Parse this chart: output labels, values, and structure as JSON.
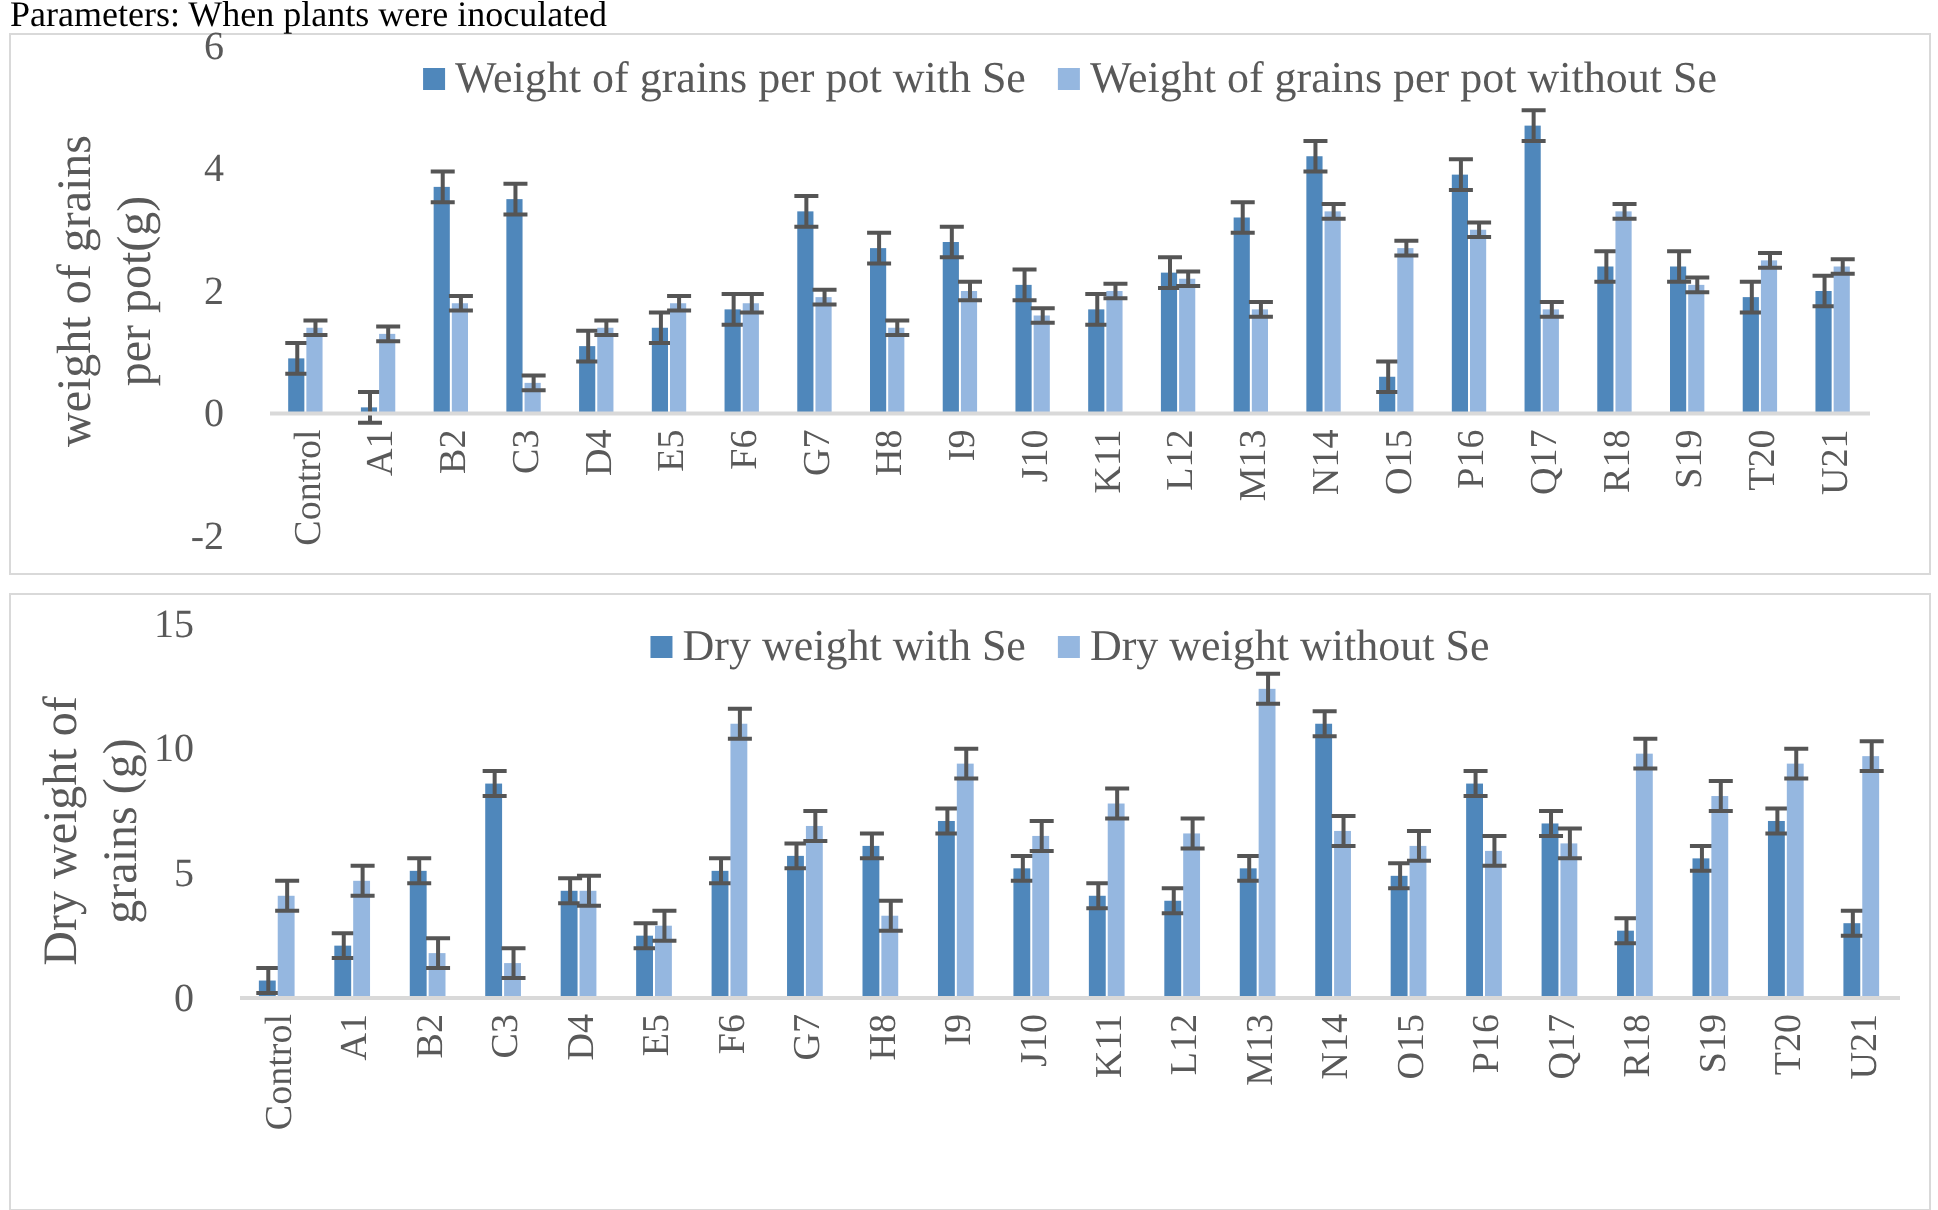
{
  "chart_data": [
    {
      "type": "bar",
      "ylabel": "weight of grains per pot(g)",
      "annotations": [
        "Parameters: When plants were inoculated"
      ],
      "categories": [
        "Control",
        "A1",
        "B2",
        "C3",
        "D4",
        "E5",
        "F6",
        "G7",
        "H8",
        "I9",
        "J10",
        "K11",
        "L12",
        "M13",
        "N14",
        "O15",
        "P16",
        "Q17",
        "R18",
        "S19",
        "T20",
        "U21"
      ],
      "series": [
        {
          "name": "Weight of grains per pot with Se",
          "color": "#4f87bb",
          "values": [
            0.9,
            0.1,
            3.7,
            3.5,
            1.1,
            1.4,
            1.7,
            3.3,
            2.7,
            2.8,
            2.1,
            1.7,
            2.3,
            3.2,
            4.2,
            0.6,
            3.9,
            4.7,
            2.4,
            2.4,
            1.9,
            2.0
          ],
          "errors": [
            0.25,
            0.25,
            0.25,
            0.25,
            0.25,
            0.25,
            0.25,
            0.25,
            0.25,
            0.25,
            0.25,
            0.25,
            0.25,
            0.25,
            0.25,
            0.25,
            0.25,
            0.25,
            0.25,
            0.25,
            0.25,
            0.25
          ]
        },
        {
          "name": "Weight of grains per pot without Se",
          "color": "#95b7e0",
          "values": [
            1.4,
            1.3,
            1.8,
            0.5,
            1.4,
            1.8,
            1.8,
            1.9,
            1.4,
            2.0,
            1.6,
            2.0,
            2.2,
            1.7,
            3.3,
            2.7,
            3.0,
            1.7,
            3.3,
            2.1,
            2.5,
            2.4
          ],
          "errors": [
            0.12,
            0.12,
            0.12,
            0.12,
            0.12,
            0.12,
            0.15,
            0.12,
            0.12,
            0.15,
            0.12,
            0.12,
            0.12,
            0.12,
            0.12,
            0.12,
            0.12,
            0.12,
            0.12,
            0.12,
            0.12,
            0.12
          ]
        }
      ],
      "ylim": [
        -2,
        6
      ],
      "yticks": [
        -2,
        0,
        2,
        4,
        6
      ],
      "grid": false,
      "legend": "top"
    },
    {
      "type": "bar",
      "ylabel": "Dry weight of grains (g)",
      "categories": [
        "Control",
        "A1",
        "B2",
        "C3",
        "D4",
        "E5",
        "F6",
        "G7",
        "H8",
        "I9",
        "J10",
        "K11",
        "L12",
        "M13",
        "N14",
        "O15",
        "P16",
        "Q17",
        "R18",
        "S19",
        "T20",
        "U21"
      ],
      "series": [
        {
          "name": "Dry weight with Se",
          "color": "#4f87bb",
          "values": [
            0.7,
            2.1,
            5.1,
            8.6,
            4.3,
            2.5,
            5.1,
            5.7,
            6.1,
            7.1,
            5.2,
            4.1,
            3.9,
            5.2,
            11.0,
            4.9,
            8.6,
            7.0,
            2.7,
            5.6,
            7.1,
            3.0
          ],
          "errors": [
            0.5,
            0.5,
            0.5,
            0.5,
            0.5,
            0.5,
            0.5,
            0.5,
            0.5,
            0.5,
            0.5,
            0.5,
            0.5,
            0.5,
            0.5,
            0.5,
            0.5,
            0.5,
            0.5,
            0.5,
            0.5,
            0.5
          ]
        },
        {
          "name": "Dry weight without Se",
          "color": "#95b7e0",
          "values": [
            4.1,
            4.7,
            1.8,
            1.4,
            4.3,
            2.9,
            11.0,
            6.9,
            3.3,
            9.4,
            6.5,
            7.8,
            6.6,
            12.4,
            6.7,
            6.1,
            5.9,
            6.2,
            9.8,
            8.1,
            9.4,
            9.7
          ],
          "errors": [
            0.6,
            0.6,
            0.6,
            0.6,
            0.6,
            0.6,
            0.6,
            0.6,
            0.6,
            0.6,
            0.6,
            0.6,
            0.6,
            0.6,
            0.6,
            0.6,
            0.6,
            0.6,
            0.6,
            0.6,
            0.6,
            0.6
          ]
        }
      ],
      "ylim": [
        0,
        15
      ],
      "yticks": [
        0,
        5,
        10,
        15
      ],
      "grid": false,
      "legend": "top"
    }
  ]
}
